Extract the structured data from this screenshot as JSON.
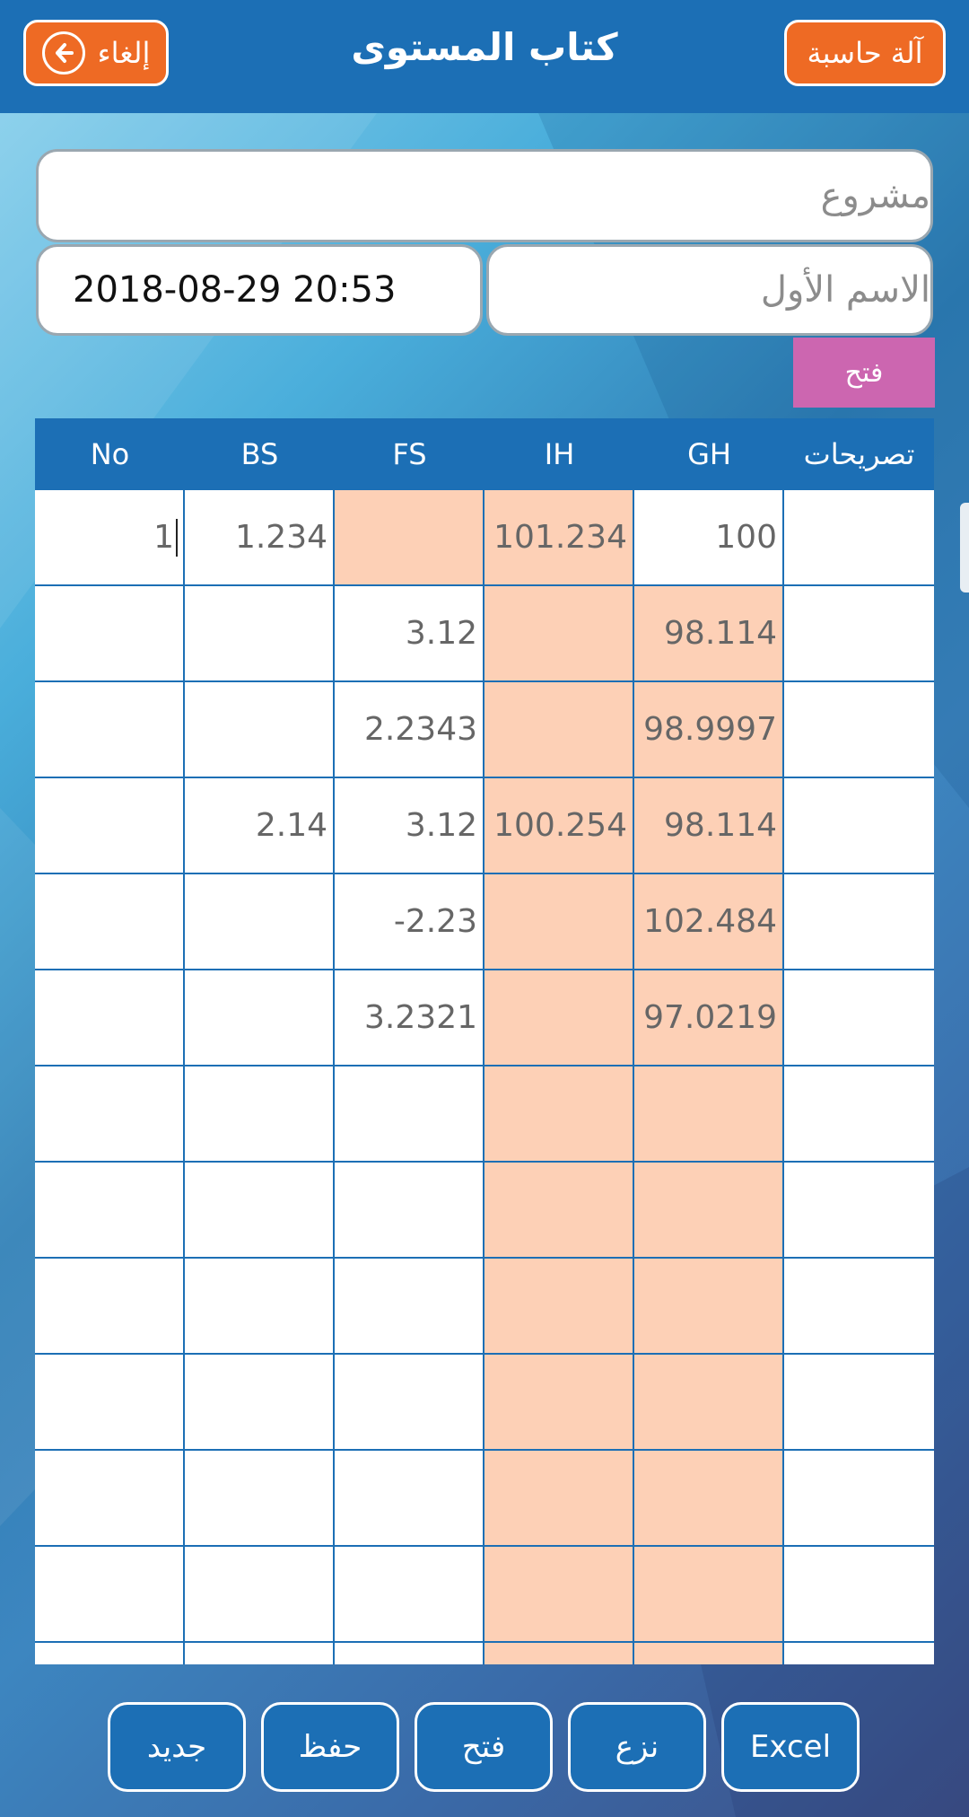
{
  "header": {
    "title": "كتاب المستوى",
    "cancel_label": "إلغاء",
    "calculator_label": "آلة حاسبة"
  },
  "form": {
    "project_placeholder": "مشروع",
    "first_name_placeholder": "الاسم الأول",
    "datetime_value": "2018-08-29 20:53",
    "open_label": "فتح"
  },
  "table": {
    "headers": [
      "No",
      "BS",
      "FS",
      "IH",
      "GH",
      "تصريحات"
    ],
    "rows": [
      {
        "no": "1",
        "bs": "1.234",
        "fs": "",
        "ih": "101.234",
        "gh": "100",
        "remarks": ""
      },
      {
        "no": "",
        "bs": "",
        "fs": "3.12",
        "ih": "",
        "gh": "98.114",
        "remarks": ""
      },
      {
        "no": "",
        "bs": "",
        "fs": "2.2343",
        "ih": "",
        "gh": "98.9997",
        "remarks": ""
      },
      {
        "no": "",
        "bs": "2.14",
        "fs": "3.12",
        "ih": "100.254",
        "gh": "98.114",
        "remarks": ""
      },
      {
        "no": "",
        "bs": "",
        "fs": "-2.23",
        "ih": "",
        "gh": "102.484",
        "remarks": ""
      },
      {
        "no": "",
        "bs": "",
        "fs": "3.2321",
        "ih": "",
        "gh": "97.0219",
        "remarks": ""
      }
    ],
    "empty_row_count": 7
  },
  "bottom": {
    "new_label": "جديد",
    "save_label": "حفظ",
    "open_label": "فتح",
    "remove_label": "نزع",
    "excel_label": "Excel"
  },
  "colors": {
    "header_blue": "#1c6fb5",
    "orange": "#ee6a24",
    "pink": "#cc66b0",
    "peach": "#fdd0b6"
  },
  "icons": {
    "cancel": "arrow-left-circle-icon"
  }
}
